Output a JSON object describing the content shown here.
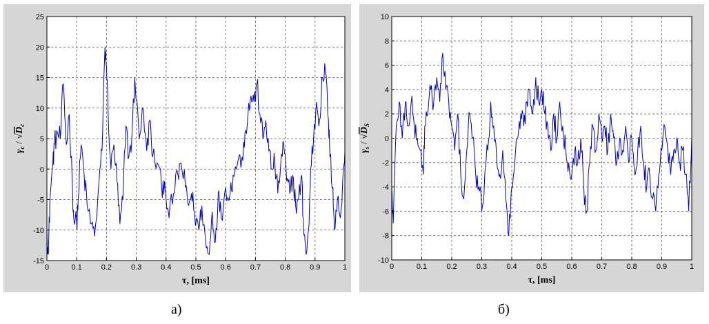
{
  "chart_data": [
    {
      "type": "line",
      "id": "a",
      "xlabel": "τ, [ms]",
      "ylabel_main": "γ",
      "ylabel_sub": "c",
      "ylabel_sep": " / ",
      "ylabel_root_main": "D",
      "ylabel_root_sub": "c",
      "xlim": [
        0,
        1
      ],
      "ylim": [
        -15,
        25
      ],
      "xticks": [
        "0",
        "0.1",
        "0.2",
        "0.3",
        "0.4",
        "0.5",
        "0.6",
        "0.7",
        "0.8",
        "0.9",
        "1"
      ],
      "yticks": [
        "-15",
        "-10",
        "-5",
        "0",
        "5",
        "10",
        "15",
        "20",
        "25"
      ],
      "grid": true,
      "color": "#0000cc",
      "keypoints": [
        [
          0.0,
          -10
        ],
        [
          0.005,
          -14
        ],
        [
          0.01,
          -5
        ],
        [
          0.02,
          1
        ],
        [
          0.025,
          4
        ],
        [
          0.035,
          6
        ],
        [
          0.045,
          5
        ],
        [
          0.055,
          14
        ],
        [
          0.065,
          4
        ],
        [
          0.075,
          9
        ],
        [
          0.085,
          -2
        ],
        [
          0.09,
          -8
        ],
        [
          0.1,
          -9
        ],
        [
          0.105,
          -5
        ],
        [
          0.115,
          4
        ],
        [
          0.125,
          -1
        ],
        [
          0.135,
          -6
        ],
        [
          0.15,
          -9
        ],
        [
          0.16,
          -11
        ],
        [
          0.175,
          -2
        ],
        [
          0.185,
          3
        ],
        [
          0.195,
          20
        ],
        [
          0.2,
          17
        ],
        [
          0.205,
          10
        ],
        [
          0.215,
          0
        ],
        [
          0.225,
          4
        ],
        [
          0.235,
          -2
        ],
        [
          0.245,
          -9
        ],
        [
          0.255,
          -5
        ],
        [
          0.265,
          7
        ],
        [
          0.275,
          2
        ],
        [
          0.285,
          5
        ],
        [
          0.295,
          15
        ],
        [
          0.31,
          5
        ],
        [
          0.32,
          10
        ],
        [
          0.335,
          3
        ],
        [
          0.345,
          8
        ],
        [
          0.355,
          2
        ],
        [
          0.37,
          1
        ],
        [
          0.385,
          -3
        ],
        [
          0.395,
          -2
        ],
        [
          0.41,
          -8
        ],
        [
          0.425,
          -4
        ],
        [
          0.44,
          -1
        ],
        [
          0.45,
          1
        ],
        [
          0.465,
          -3
        ],
        [
          0.475,
          -6
        ],
        [
          0.485,
          -4
        ],
        [
          0.495,
          -7
        ],
        [
          0.51,
          -10
        ],
        [
          0.52,
          -6
        ],
        [
          0.535,
          -13
        ],
        [
          0.545,
          -14
        ],
        [
          0.555,
          -7
        ],
        [
          0.565,
          -12
        ],
        [
          0.575,
          -4
        ],
        [
          0.585,
          -8
        ],
        [
          0.6,
          -3
        ],
        [
          0.615,
          -4
        ],
        [
          0.625,
          -1
        ],
        [
          0.64,
          1
        ],
        [
          0.655,
          2
        ],
        [
          0.665,
          6
        ],
        [
          0.675,
          9
        ],
        [
          0.685,
          12
        ],
        [
          0.695,
          11
        ],
        [
          0.705,
          14
        ],
        [
          0.715,
          9
        ],
        [
          0.725,
          5
        ],
        [
          0.735,
          8
        ],
        [
          0.745,
          3
        ],
        [
          0.755,
          0
        ],
        [
          0.765,
          1
        ],
        [
          0.775,
          -4
        ],
        [
          0.785,
          1
        ],
        [
          0.795,
          4
        ],
        [
          0.805,
          -2
        ],
        [
          0.815,
          -4
        ],
        [
          0.825,
          -1
        ],
        [
          0.835,
          -6
        ],
        [
          0.845,
          -5
        ],
        [
          0.855,
          -1
        ],
        [
          0.86,
          -8
        ],
        [
          0.87,
          -14
        ],
        [
          0.88,
          -9
        ],
        [
          0.885,
          0
        ],
        [
          0.895,
          5
        ],
        [
          0.905,
          11
        ],
        [
          0.915,
          8
        ],
        [
          0.925,
          15
        ],
        [
          0.935,
          16
        ],
        [
          0.945,
          8
        ],
        [
          0.95,
          2
        ],
        [
          0.96,
          -3
        ],
        [
          0.965,
          -10
        ],
        [
          0.975,
          -5
        ],
        [
          0.985,
          -8
        ],
        [
          0.995,
          0
        ],
        [
          1.0,
          3
        ]
      ]
    },
    {
      "type": "line",
      "id": "b",
      "xlabel": "τ, [ms]",
      "ylabel_main": "γ",
      "ylabel_sub": "s",
      "ylabel_sep": " / ",
      "ylabel_root_main": "D",
      "ylabel_root_sub": "S",
      "xlim": [
        0,
        1
      ],
      "ylim": [
        -10,
        10
      ],
      "xticks": [
        "0",
        "0.1",
        "0.2",
        "0.3",
        "0.4",
        "0.5",
        "0.6",
        "0.7",
        "0.8",
        "0.9",
        "1"
      ],
      "yticks": [
        "-10",
        "-8",
        "-6",
        "-4",
        "-2",
        "0",
        "2",
        "4",
        "6",
        "8",
        "10"
      ],
      "grid": true,
      "color": "#0000cc",
      "keypoints": [
        [
          0.0,
          -4
        ],
        [
          0.005,
          -7
        ],
        [
          0.015,
          1
        ],
        [
          0.025,
          3
        ],
        [
          0.035,
          0
        ],
        [
          0.045,
          3
        ],
        [
          0.055,
          1
        ],
        [
          0.065,
          3
        ],
        [
          0.075,
          1
        ],
        [
          0.085,
          0
        ],
        [
          0.095,
          -1
        ],
        [
          0.105,
          -3
        ],
        [
          0.11,
          1
        ],
        [
          0.12,
          2
        ],
        [
          0.13,
          4
        ],
        [
          0.14,
          3
        ],
        [
          0.15,
          5
        ],
        [
          0.16,
          3
        ],
        [
          0.17,
          7
        ],
        [
          0.18,
          4
        ],
        [
          0.19,
          3
        ],
        [
          0.2,
          1
        ],
        [
          0.21,
          -1
        ],
        [
          0.22,
          2
        ],
        [
          0.23,
          -3
        ],
        [
          0.24,
          -5
        ],
        [
          0.25,
          -1
        ],
        [
          0.26,
          2
        ],
        [
          0.27,
          0
        ],
        [
          0.28,
          -3
        ],
        [
          0.29,
          -4
        ],
        [
          0.3,
          -6
        ],
        [
          0.31,
          -3
        ],
        [
          0.32,
          -1
        ],
        [
          0.33,
          3
        ],
        [
          0.34,
          1
        ],
        [
          0.35,
          -2
        ],
        [
          0.36,
          -3
        ],
        [
          0.37,
          -1
        ],
        [
          0.38,
          -5
        ],
        [
          0.39,
          -8
        ],
        [
          0.4,
          -4
        ],
        [
          0.41,
          -2
        ],
        [
          0.42,
          0
        ],
        [
          0.43,
          2
        ],
        [
          0.44,
          1
        ],
        [
          0.45,
          3
        ],
        [
          0.46,
          4
        ],
        [
          0.47,
          2
        ],
        [
          0.48,
          5
        ],
        [
          0.49,
          3
        ],
        [
          0.5,
          4
        ],
        [
          0.51,
          2
        ],
        [
          0.52,
          1
        ],
        [
          0.53,
          -1
        ],
        [
          0.54,
          2
        ],
        [
          0.55,
          0
        ],
        [
          0.56,
          3
        ],
        [
          0.57,
          1
        ],
        [
          0.58,
          -1
        ],
        [
          0.59,
          -2
        ],
        [
          0.6,
          -3
        ],
        [
          0.61,
          -1
        ],
        [
          0.62,
          -2
        ],
        [
          0.63,
          0
        ],
        [
          0.64,
          -4
        ],
        [
          0.65,
          -6
        ],
        [
          0.66,
          -2
        ],
        [
          0.67,
          1
        ],
        [
          0.68,
          -1
        ],
        [
          0.69,
          2
        ],
        [
          0.7,
          0
        ],
        [
          0.71,
          1
        ],
        [
          0.72,
          -1
        ],
        [
          0.73,
          2
        ],
        [
          0.74,
          0
        ],
        [
          0.75,
          -2
        ],
        [
          0.76,
          0
        ],
        [
          0.77,
          -1
        ],
        [
          0.78,
          1
        ],
        [
          0.79,
          -2
        ],
        [
          0.8,
          0
        ],
        [
          0.81,
          -3
        ],
        [
          0.82,
          -1
        ],
        [
          0.83,
          1
        ],
        [
          0.84,
          -2
        ],
        [
          0.85,
          -4
        ],
        [
          0.86,
          -3
        ],
        [
          0.87,
          -5
        ],
        [
          0.88,
          -6
        ],
        [
          0.89,
          -3
        ],
        [
          0.9,
          -1
        ],
        [
          0.91,
          1
        ],
        [
          0.92,
          -1
        ],
        [
          0.93,
          -3
        ],
        [
          0.94,
          -1
        ],
        [
          0.95,
          0
        ],
        [
          0.96,
          -2
        ],
        [
          0.97,
          -1
        ],
        [
          0.98,
          -3
        ],
        [
          0.99,
          -6
        ],
        [
          1.0,
          0
        ]
      ]
    }
  ],
  "captions": {
    "a": "а)",
    "b": "б)"
  }
}
